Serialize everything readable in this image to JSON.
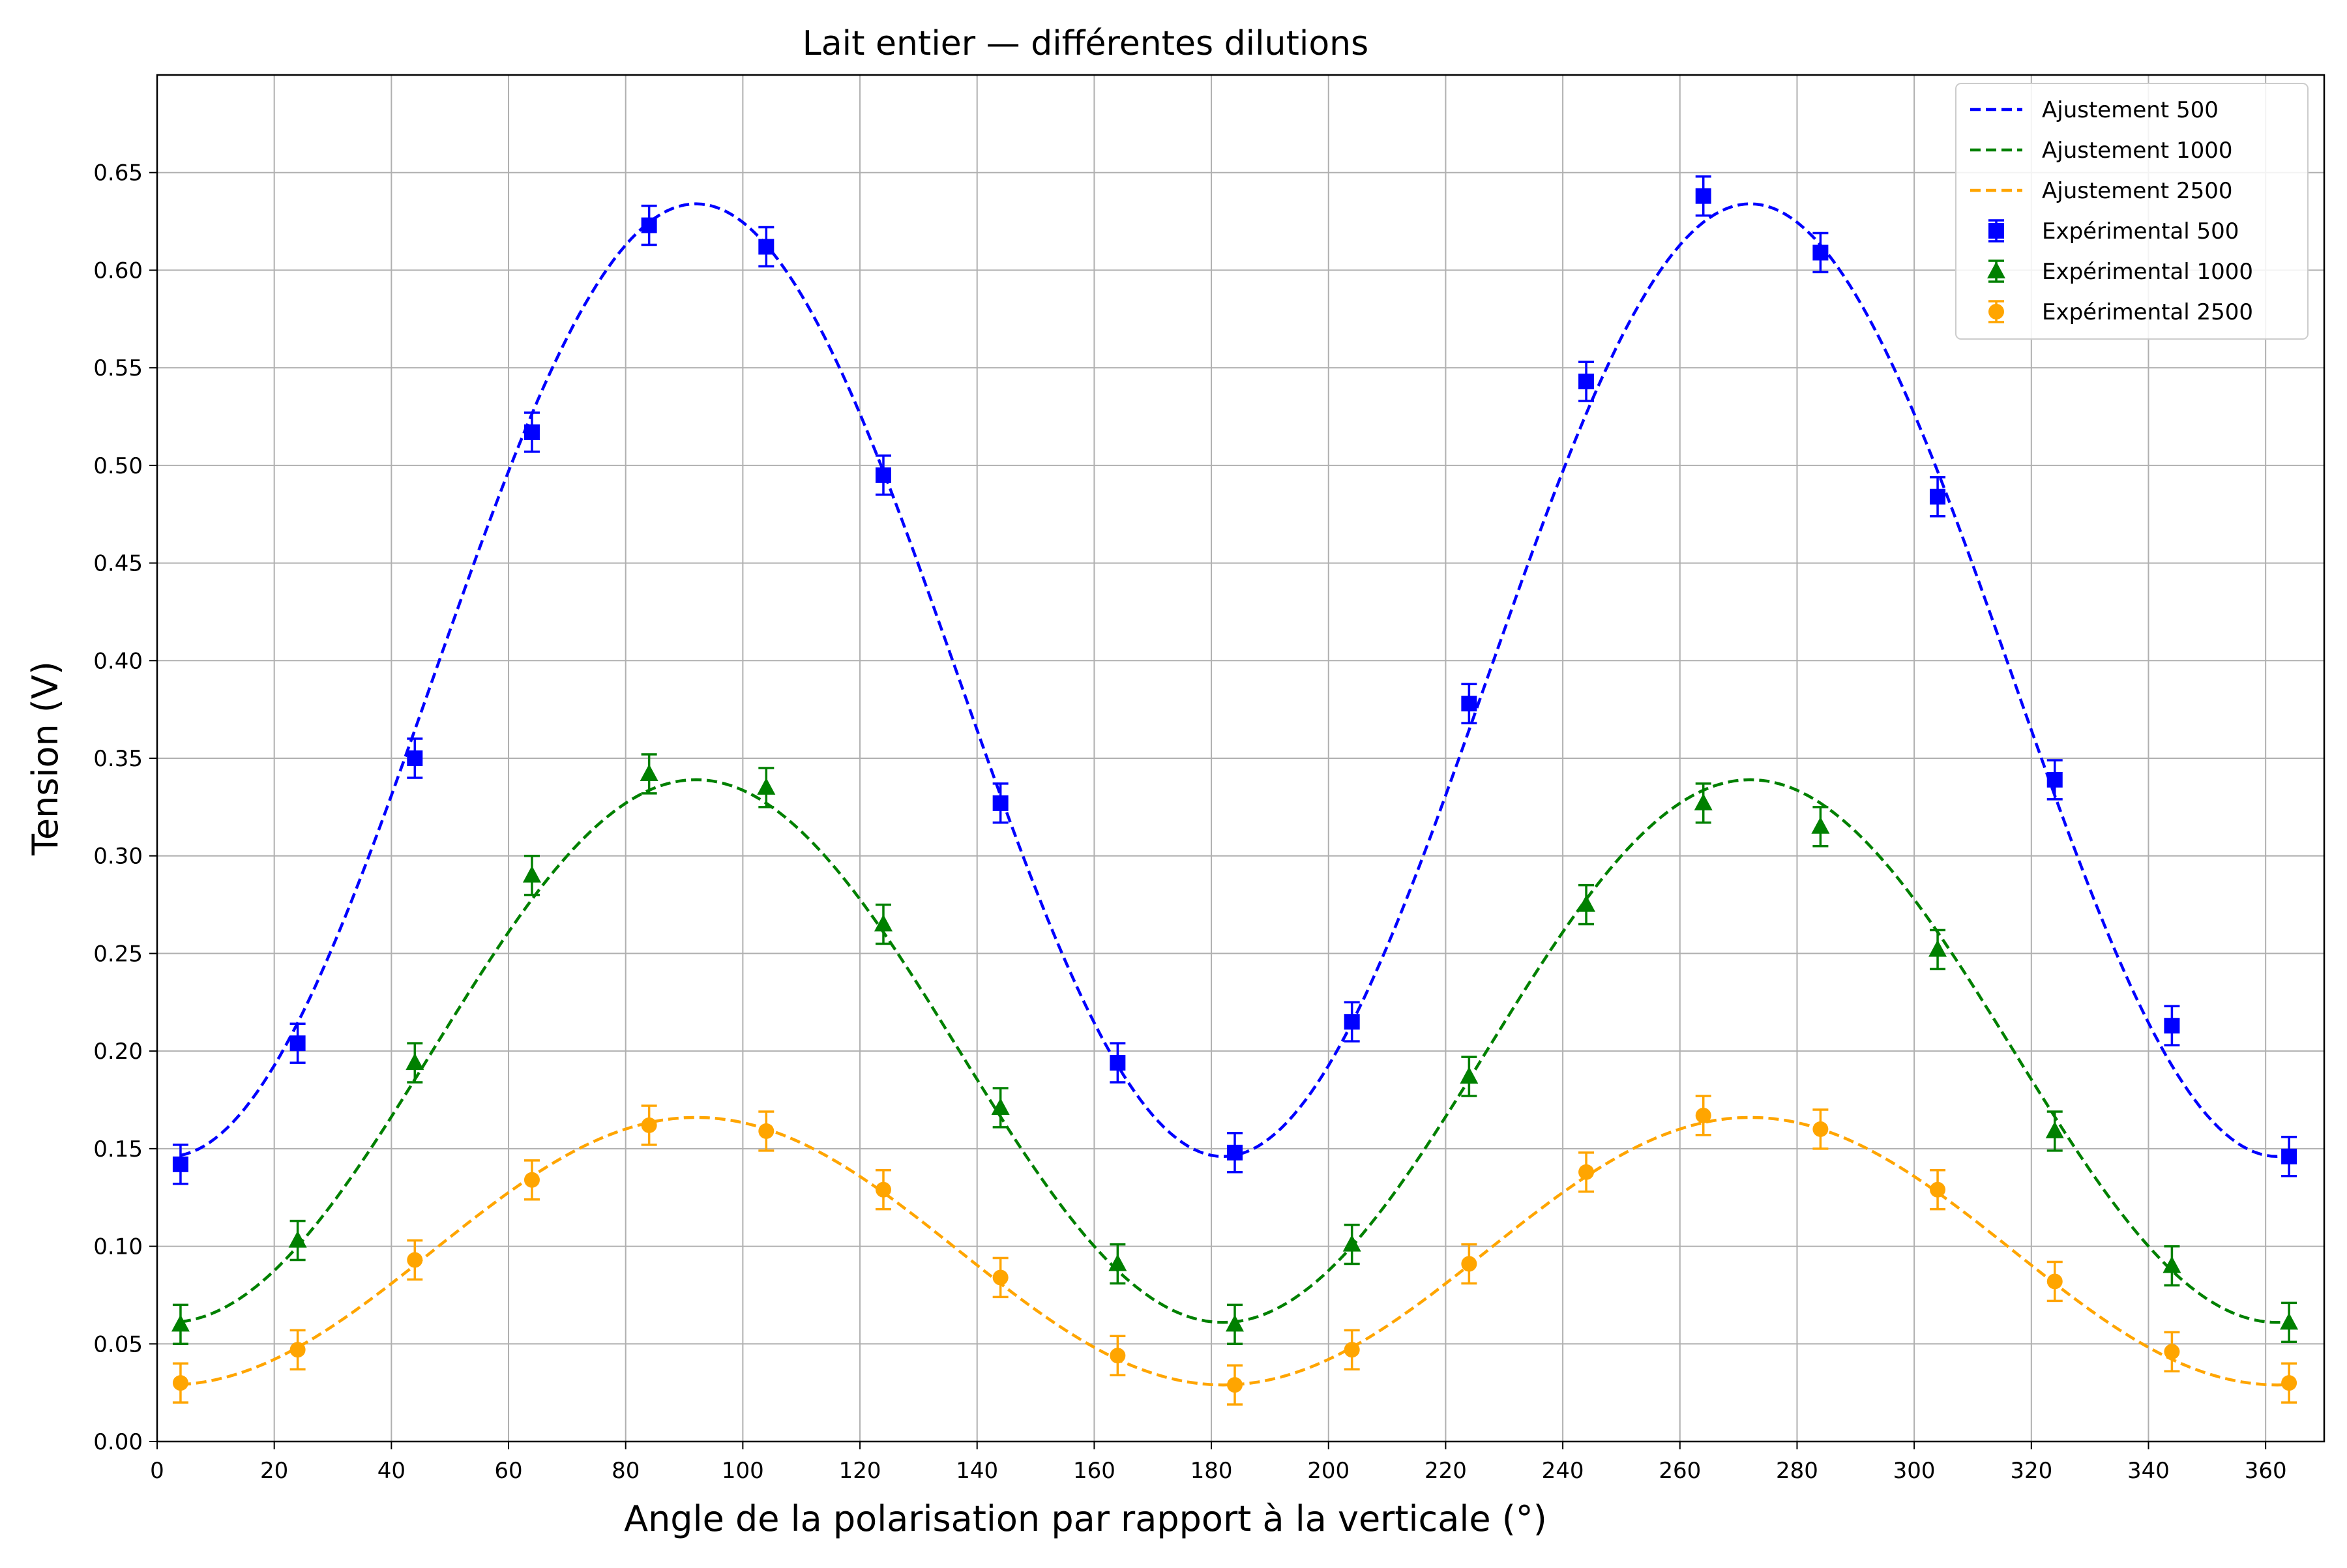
{
  "chart_data": {
    "type": "scatter",
    "title": "Lait entier — différentes dilutions",
    "xlabel": "Angle de la polarisation par rapport à la verticale (°)",
    "ylabel": "Tension (V)",
    "xlim": [
      0,
      370
    ],
    "ylim": [
      0,
      0.7
    ],
    "xticks": [
      0,
      20,
      40,
      60,
      80,
      100,
      120,
      140,
      160,
      180,
      200,
      220,
      240,
      260,
      280,
      300,
      320,
      340,
      360
    ],
    "yticks": [
      0.0,
      0.05,
      0.1,
      0.15,
      0.2,
      0.25,
      0.3,
      0.35,
      0.4,
      0.45,
      0.5,
      0.55,
      0.6,
      0.65
    ],
    "grid": true,
    "legend": "top-right",
    "x": [
      4,
      24,
      44,
      64,
      84,
      104,
      124,
      144,
      164,
      184,
      204,
      224,
      244,
      264,
      284,
      304,
      324,
      344,
      364
    ],
    "fits": [
      {
        "name": "Ajustement 500",
        "color": "#0000ff",
        "min": 0.146,
        "max": 0.634,
        "peak_x": 92,
        "period": 180
      },
      {
        "name": "Ajustement 1000",
        "color": "#008000",
        "min": 0.061,
        "max": 0.339,
        "peak_x": 92,
        "period": 180
      },
      {
        "name": "Ajustement 2500",
        "color": "#ffa500",
        "min": 0.029,
        "max": 0.166,
        "peak_x": 92,
        "period": 180
      }
    ],
    "series": [
      {
        "name": "Expérimental 500",
        "color": "#0000ff",
        "marker": "square",
        "error": 0.01,
        "values": [
          0.142,
          0.204,
          0.35,
          0.517,
          0.623,
          0.612,
          0.495,
          0.327,
          0.194,
          0.148,
          0.215,
          0.378,
          0.543,
          0.638,
          0.609,
          0.484,
          0.339,
          0.213,
          0.146
        ]
      },
      {
        "name": "Expérimental 1000",
        "color": "#008000",
        "marker": "triangle",
        "error": 0.01,
        "values": [
          0.06,
          0.103,
          0.194,
          0.29,
          0.342,
          0.335,
          0.265,
          0.171,
          0.091,
          0.06,
          0.101,
          0.187,
          0.275,
          0.327,
          0.315,
          0.252,
          0.159,
          0.09,
          0.061
        ]
      },
      {
        "name": "Expérimental 2500",
        "color": "#ffa500",
        "marker": "circle",
        "error": 0.01,
        "values": [
          0.03,
          0.047,
          0.093,
          0.134,
          0.162,
          0.159,
          0.129,
          0.084,
          0.044,
          0.029,
          0.047,
          0.091,
          0.138,
          0.167,
          0.16,
          0.129,
          0.082,
          0.046,
          0.03
        ]
      }
    ]
  }
}
